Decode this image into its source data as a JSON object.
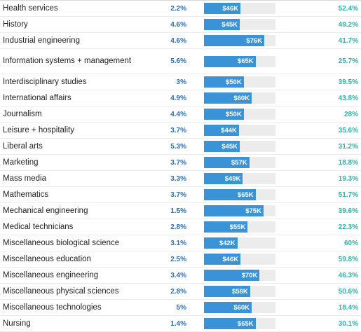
{
  "bar_max_salary_k": 90,
  "rows": [
    {
      "major": "Health services",
      "unemployment": "2.2%",
      "salary": "$46K",
      "salary_k": 46,
      "share": "52.4%"
    },
    {
      "major": "History",
      "unemployment": "4.6%",
      "salary": "$45K",
      "salary_k": 45,
      "share": "49.2%"
    },
    {
      "major": "Industrial engineering",
      "unemployment": "4.6%",
      "salary": "$76K",
      "salary_k": 76,
      "share": "41.7%"
    },
    {
      "major": "Information systems + management",
      "unemployment": "5.6%",
      "salary": "$65K",
      "salary_k": 65,
      "share": "25.7%"
    },
    {
      "major": "Interdisciplinary studies",
      "unemployment": "3%",
      "salary": "$50K",
      "salary_k": 50,
      "share": "39.5%"
    },
    {
      "major": "International affairs",
      "unemployment": "4.9%",
      "salary": "$60K",
      "salary_k": 60,
      "share": "43.8%"
    },
    {
      "major": "Journalism",
      "unemployment": "4.4%",
      "salary": "$50K",
      "salary_k": 50,
      "share": "28%"
    },
    {
      "major": "Leisure + hospitality",
      "unemployment": "3.7%",
      "salary": "$44K",
      "salary_k": 44,
      "share": "35.6%"
    },
    {
      "major": "Liberal arts",
      "unemployment": "5.3%",
      "salary": "$45K",
      "salary_k": 45,
      "share": "31.2%"
    },
    {
      "major": "Marketing",
      "unemployment": "3.7%",
      "salary": "$57K",
      "salary_k": 57,
      "share": "18.8%"
    },
    {
      "major": "Mass media",
      "unemployment": "3.3%",
      "salary": "$49K",
      "salary_k": 49,
      "share": "19.3%"
    },
    {
      "major": "Mathematics",
      "unemployment": "3.7%",
      "salary": "$65K",
      "salary_k": 65,
      "share": "51.7%"
    },
    {
      "major": "Mechanical engineering",
      "unemployment": "1.5%",
      "salary": "$75K",
      "salary_k": 75,
      "share": "39.6%"
    },
    {
      "major": "Medical technicians",
      "unemployment": "2.8%",
      "salary": "$55K",
      "salary_k": 55,
      "share": "22.3%"
    },
    {
      "major": "Miscellaneous biological science",
      "unemployment": "3.1%",
      "salary": "$42K",
      "salary_k": 42,
      "share": "60%"
    },
    {
      "major": "Miscellaneous education",
      "unemployment": "2.5%",
      "salary": "$46K",
      "salary_k": 46,
      "share": "59.8%"
    },
    {
      "major": "Miscellaneous engineering",
      "unemployment": "3.4%",
      "salary": "$70K",
      "salary_k": 70,
      "share": "46.3%"
    },
    {
      "major": "Miscellaneous physical sciences",
      "unemployment": "2.8%",
      "salary": "$58K",
      "salary_k": 58,
      "share": "50.6%"
    },
    {
      "major": "Miscellaneous technologies",
      "unemployment": "5%",
      "salary": "$60K",
      "salary_k": 60,
      "share": "18.4%"
    },
    {
      "major": "Nursing",
      "unemployment": "1.4%",
      "salary": "$65K",
      "salary_k": 65,
      "share": "30.1%"
    }
  ]
}
